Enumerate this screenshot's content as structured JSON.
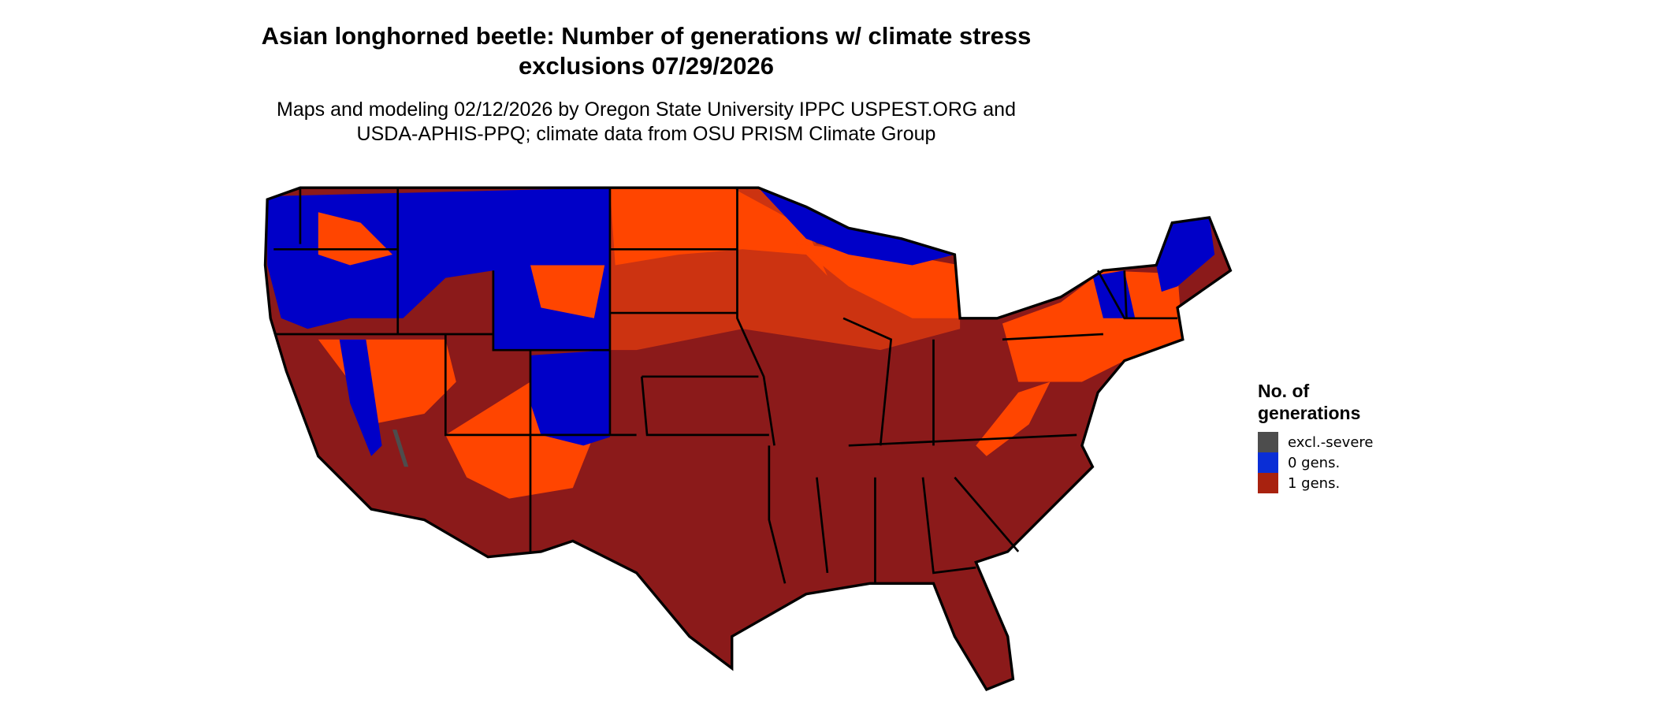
{
  "title": {
    "line1": "Asian longhorned beetle: Number of generations w/ climate stress",
    "line2": "exclusions 07/29/2026"
  },
  "subtitle": {
    "line1": "Maps and modeling 02/12/2026 by Oregon State University IPPC USPEST.ORG and",
    "line2": "USDA-APHIS-PPQ; climate data from OSU PRISM Climate Group"
  },
  "map": {
    "region": "Contiguous United States",
    "colors": {
      "excl_severe": "#4d4d4d",
      "zero_gens": "#0000c8",
      "zero_gens_legend": "#0a2ed6",
      "one_gen_low": "#ff4500",
      "one_gen_mid": "#cc3311",
      "one_gen": "#8b1a1a",
      "one_gen_legend": "#a8220f",
      "borders": "#000000"
    }
  },
  "legend": {
    "title_line1": "No. of",
    "title_line2": "generations",
    "items": [
      {
        "label": "excl.-severe",
        "color": "#4d4d4d"
      },
      {
        "label": "0 gens.",
        "color": "#0a2ed6"
      },
      {
        "label": "1 gens.",
        "color": "#a8220f"
      }
    ]
  }
}
